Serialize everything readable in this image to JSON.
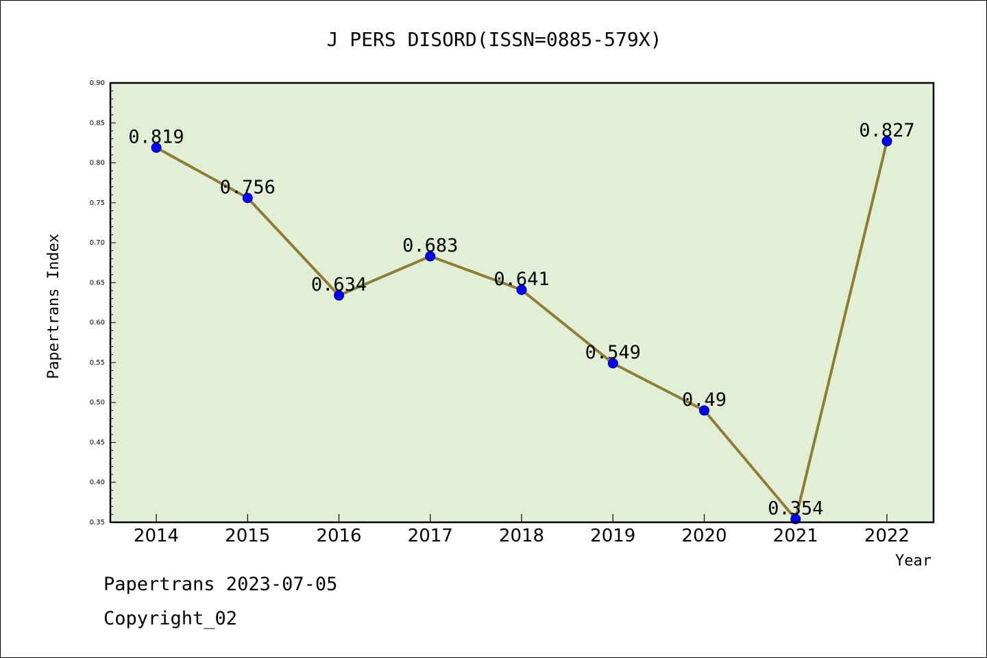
{
  "chart_data": {
    "type": "line",
    "title": "J PERS DISORD(ISSN=0885-579X)",
    "xlabel": "Year",
    "ylabel": "Papertrans Index",
    "categories": [
      "2014",
      "2015",
      "2016",
      "2017",
      "2018",
      "2019",
      "2020",
      "2021",
      "2022"
    ],
    "series": [
      {
        "values": [
          0.819,
          0.756,
          0.634,
          0.683,
          0.641,
          0.549,
          0.49,
          0.354,
          0.827
        ]
      }
    ],
    "data_labels": [
      "0.819",
      "0.756",
      "0.634",
      "0.683",
      "0.641",
      "0.549",
      "0.49",
      "0.354",
      "0.827"
    ],
    "ylim": [
      0.35,
      0.9
    ],
    "yticks": [
      "0.35",
      "0.40",
      "0.45",
      "0.50",
      "0.55",
      "0.60",
      "0.65",
      "0.70",
      "0.75",
      "0.80",
      "0.85",
      "0.90"
    ],
    "grid": false,
    "legend": "none"
  },
  "colors": {
    "plot_background": "#e2efd6",
    "line": "#8c7f35",
    "marker": "#0000ff"
  },
  "footer": {
    "date_text": "Papertrans 2023-07-05",
    "copyright_text": "Copyright_02"
  }
}
